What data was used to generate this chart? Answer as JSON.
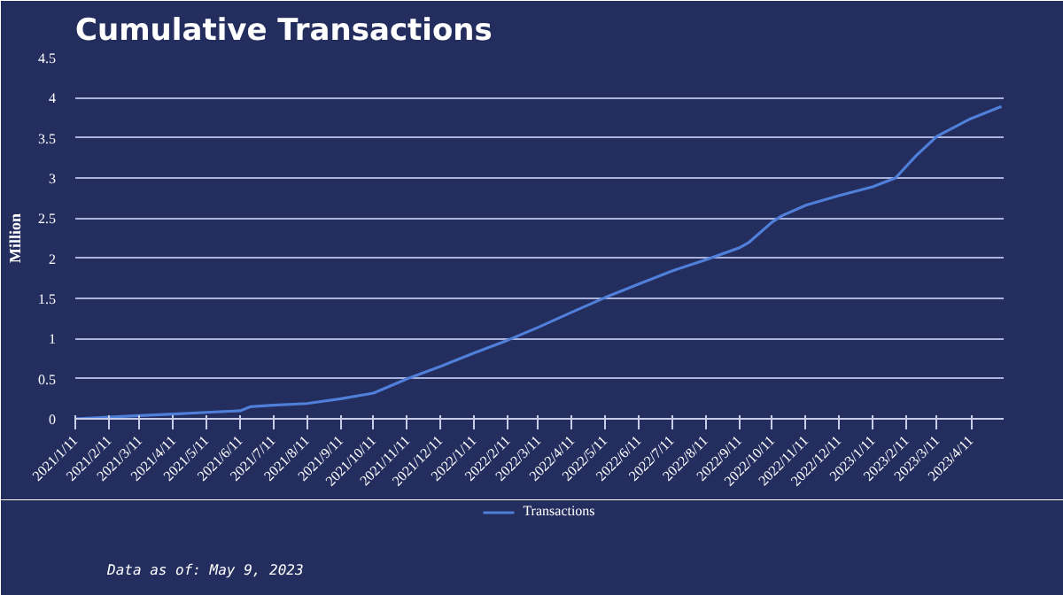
{
  "chart_data": {
    "type": "line",
    "title": "Cumulative Transactions",
    "ylabel": "Million",
    "series": [
      {
        "name": "Transactions",
        "color": "#4f7fd8",
        "x": [
          "2021-01-11",
          "2021-02-11",
          "2021-03-11",
          "2021-04-11",
          "2021-05-11",
          "2021-06-11",
          "2021-06-20",
          "2021-07-11",
          "2021-08-11",
          "2021-09-11",
          "2021-10-11",
          "2021-11-11",
          "2021-12-11",
          "2022-01-11",
          "2022-02-11",
          "2022-03-11",
          "2022-04-11",
          "2022-05-11",
          "2022-06-11",
          "2022-07-11",
          "2022-08-11",
          "2022-09-11",
          "2022-09-20",
          "2022-10-11",
          "2022-10-20",
          "2022-11-11",
          "2022-12-11",
          "2023-01-11",
          "2023-02-01",
          "2023-02-20",
          "2023-03-11",
          "2023-04-11",
          "2023-05-09"
        ],
        "values": [
          0,
          0.02,
          0.04,
          0.06,
          0.08,
          0.1,
          0.15,
          0.17,
          0.19,
          0.25,
          0.32,
          0.5,
          0.65,
          0.82,
          0.98,
          1.14,
          1.33,
          1.51,
          1.68,
          1.84,
          1.98,
          2.13,
          2.2,
          2.45,
          2.53,
          2.66,
          2.78,
          2.89,
          3.0,
          3.28,
          3.52,
          3.74,
          3.89
        ]
      }
    ],
    "xlim": [
      "2021-01-11",
      "2023-05-11"
    ],
    "xticks": [
      {
        "value": "2021-01-11",
        "label": "2021/1/11"
      },
      {
        "value": "2021-02-11",
        "label": "2021/2/11"
      },
      {
        "value": "2021-03-11",
        "label": "2021/3/11"
      },
      {
        "value": "2021-04-11",
        "label": "2021/4/11"
      },
      {
        "value": "2021-05-11",
        "label": "2021/5/11"
      },
      {
        "value": "2021-06-11",
        "label": "2021/6/11"
      },
      {
        "value": "2021-07-11",
        "label": "2021/7/11"
      },
      {
        "value": "2021-08-11",
        "label": "2021/8/11"
      },
      {
        "value": "2021-09-11",
        "label": "2021/9/11"
      },
      {
        "value": "2021-10-11",
        "label": "2021/10/11"
      },
      {
        "value": "2021-11-11",
        "label": "2021/11/11"
      },
      {
        "value": "2021-12-11",
        "label": "2021/12/11"
      },
      {
        "value": "2022-01-11",
        "label": "2022/1/11"
      },
      {
        "value": "2022-02-11",
        "label": "2022/2/11"
      },
      {
        "value": "2022-03-11",
        "label": "2022/3/11"
      },
      {
        "value": "2022-04-11",
        "label": "2022/4/11"
      },
      {
        "value": "2022-05-11",
        "label": "2022/5/11"
      },
      {
        "value": "2022-06-11",
        "label": "2022/6/11"
      },
      {
        "value": "2022-07-11",
        "label": "2022/7/11"
      },
      {
        "value": "2022-08-11",
        "label": "2022/8/11"
      },
      {
        "value": "2022-09-11",
        "label": "2022/9/11"
      },
      {
        "value": "2022-10-11",
        "label": "2022/10/11"
      },
      {
        "value": "2022-11-11",
        "label": "2022/11/11"
      },
      {
        "value": "2022-12-11",
        "label": "2022/12/11"
      },
      {
        "value": "2023-01-11",
        "label": "2023/1/11"
      },
      {
        "value": "2023-02-11",
        "label": "2023/2/11"
      },
      {
        "value": "2023-03-11",
        "label": "2023/3/11"
      },
      {
        "value": "2023-04-11",
        "label": "2023/4/11"
      }
    ],
    "ylim": [
      0,
      4.5
    ],
    "yticks": [
      0,
      0.5,
      1,
      1.5,
      2,
      2.5,
      3,
      3.5,
      4,
      4.5
    ],
    "grid": "y",
    "legend": "bottom",
    "marker": "none",
    "line_style": "solid",
    "annotations": [
      "Data as of: May 9, 2023"
    ]
  }
}
